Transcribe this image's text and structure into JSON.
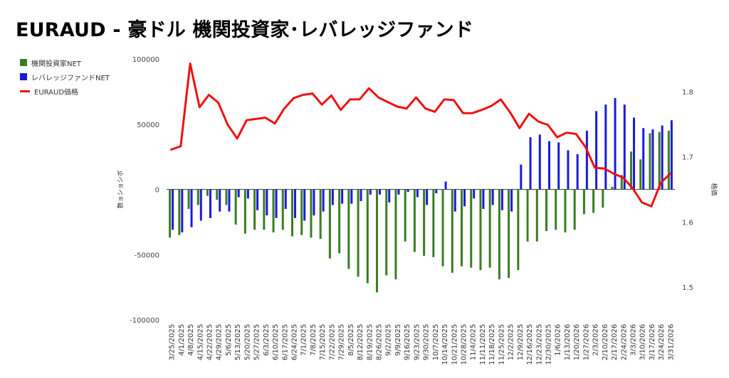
{
  "title": "EURAUD - 豪ドル 機関投資家･レバレッジファンド",
  "colors": {
    "institutional": "#3a7d22",
    "leveraged": "#1a1adf",
    "price": "#ee1111"
  },
  "chart_data": {
    "type": "bar",
    "title": "EURAUD - 豪ドル 機関投資家･レバレッジファンド",
    "categories": [
      "3/25/2025",
      "4/1/2025",
      "4/8/2025",
      "4/15/2025",
      "4/22/2025",
      "4/29/2025",
      "5/6/2025",
      "5/13/2025",
      "5/20/2025",
      "5/27/2025",
      "6/3/2025",
      "6/10/2025",
      "6/17/2025",
      "6/24/2025",
      "7/1/2025",
      "7/8/2025",
      "7/15/2025",
      "7/22/2025",
      "7/29/2025",
      "8/5/2025",
      "8/12/2025",
      "8/19/2025",
      "8/26/2025",
      "9/2/2025",
      "9/9/2025",
      "9/16/2025",
      "9/23/2025",
      "9/30/2025",
      "10/7/2025",
      "10/14/2025",
      "10/21/2025",
      "10/28/2025",
      "11/4/2025",
      "11/11/2025",
      "11/18/2025",
      "11/25/2025",
      "12/2/2025",
      "12/9/2025",
      "12/16/2025",
      "12/23/2025",
      "12/30/2025",
      "1/6/2026",
      "1/13/2026",
      "1/20/2026",
      "1/27/2026",
      "2/3/2026",
      "2/10/2026",
      "2/17/2026",
      "2/24/2026",
      "3/3/2026",
      "3/10/2026",
      "3/17/2026",
      "3/24/2026",
      "3/31/2026"
    ],
    "series": [
      {
        "name": "機関投資家NET",
        "axis": "left",
        "type": "bar",
        "values": [
          -37000,
          -35000,
          -15000,
          -12000,
          -5000,
          -8000,
          -12000,
          -27000,
          -34000,
          -31000,
          -31000,
          -33000,
          -31000,
          -36000,
          -35000,
          -37000,
          -38000,
          -53000,
          -49000,
          -61000,
          -67000,
          -72000,
          -79000,
          -66000,
          -69000,
          -40000,
          -48000,
          -51000,
          -52000,
          -59000,
          -64000,
          -59000,
          -60000,
          -62000,
          -60000,
          -69000,
          -68000,
          -62000,
          -40000,
          -40000,
          -32000,
          -31000,
          -33000,
          -31000,
          -19000,
          -18000,
          -14000,
          2000,
          11000,
          29000,
          23000,
          43000,
          44000,
          45000
        ]
      },
      {
        "name": "レバレッジファンドNET",
        "axis": "left",
        "type": "bar",
        "values": [
          -31000,
          -33000,
          -29000,
          -24000,
          -22000,
          -17000,
          -17000,
          -6000,
          -7000,
          -16000,
          -20000,
          -22000,
          -15000,
          -22000,
          -24000,
          -20000,
          -17000,
          -12000,
          -11000,
          -11000,
          -9000,
          -4000,
          -4000,
          -10000,
          -4000,
          -2000,
          -6000,
          -12000,
          -3000,
          6000,
          -17000,
          -13000,
          -7000,
          -15000,
          -12000,
          -16000,
          -17000,
          19000,
          40000,
          42000,
          37000,
          36000,
          30000,
          27000,
          45000,
          60000,
          65000,
          70000,
          65000,
          55000,
          47000,
          46000,
          49000,
          53000
        ]
      },
      {
        "name": "EURAUD価格",
        "axis": "right",
        "type": "line",
        "values": [
          1.711,
          1.716,
          1.843,
          1.776,
          1.795,
          1.783,
          1.749,
          1.728,
          1.756,
          1.758,
          1.76,
          1.751,
          1.774,
          1.79,
          1.795,
          1.797,
          1.78,
          1.794,
          1.772,
          1.788,
          1.788,
          1.805,
          1.791,
          1.784,
          1.777,
          1.774,
          1.791,
          1.774,
          1.769,
          1.788,
          1.787,
          1.767,
          1.767,
          1.772,
          1.778,
          1.788,
          1.768,
          1.744,
          1.766,
          1.754,
          1.749,
          1.73,
          1.737,
          1.735,
          1.715,
          1.683,
          1.682,
          1.674,
          1.668,
          1.652,
          1.63,
          1.624,
          1.66,
          1.674
        ]
      }
    ],
    "y_left": {
      "label": "数ョショシボ",
      "range": [
        -100000,
        100000
      ],
      "ticks": [
        -100000,
        -50000,
        0,
        50000,
        100000
      ]
    },
    "y_right": {
      "label": "格価",
      "range": [
        1.45,
        1.85
      ],
      "ticks": [
        1.5,
        1.6,
        1.7,
        1.8
      ]
    },
    "grid": false,
    "legend": "left"
  }
}
